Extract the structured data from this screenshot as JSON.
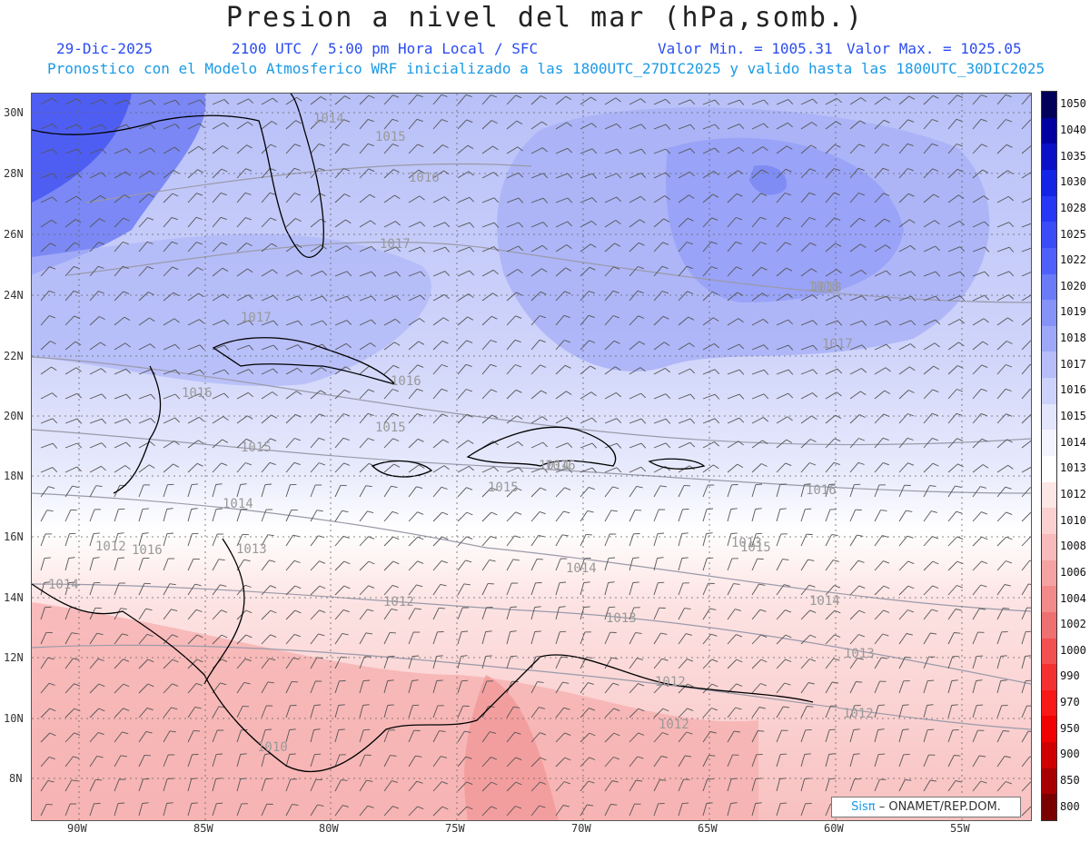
{
  "title": "Presion a nivel del mar (hPa,somb.)",
  "date": "29-Dic-2025",
  "time": "2100 UTC / 5:00 pm Hora Local / SFC",
  "min_label": "Valor Min. = 1005.31",
  "max_label": "Valor Max. = 1025.05",
  "model_line": "Pronostico con el Modelo Atmosferico WRF inicializado a las 1800UTC_27DIC2025 y valido hasta las  1800UTC_30DIC2025",
  "lat_labels": [
    "30N",
    "28N",
    "26N",
    "24N",
    "22N",
    "20N",
    "18N",
    "16N",
    "14N",
    "12N",
    "10N",
    "8N"
  ],
  "lon_labels": [
    "90W",
    "85W",
    "80W",
    "75W",
    "70W",
    "65W",
    "60W",
    "55W"
  ],
  "isobar_labels": [
    "1014",
    "1015",
    "1016",
    "1017",
    "1018",
    "1016",
    "1017",
    "1016",
    "1015",
    "1014",
    "1013",
    "1012",
    "1016",
    "1015",
    "1014",
    "1013",
    "1012",
    "1014",
    "1017",
    "1018",
    "1016",
    "1015",
    "1014",
    "1013",
    "1012",
    "1012",
    "1012",
    "1010",
    "1016",
    "1015",
    "1014",
    "1013"
  ],
  "colorbar": {
    "levels": [
      "1050",
      "1040",
      "1035",
      "1030",
      "1028",
      "1025",
      "1022",
      "1020",
      "1019",
      "1018",
      "1017",
      "1016",
      "1015",
      "1014",
      "1013",
      "1012",
      "1010",
      "1008",
      "1006",
      "1004",
      "1002",
      "1000",
      "990",
      "970",
      "950",
      "900",
      "850",
      "800"
    ],
    "colors": [
      "#00005a",
      "#0000a0",
      "#0a10c8",
      "#1424e6",
      "#2638f5",
      "#3a4cf8",
      "#5060fa",
      "#6a7bf8",
      "#8592f7",
      "#9ea8f8",
      "#b6bdf9",
      "#cdd2fa",
      "#e2e5fc",
      "#f2f3fd",
      "#ffffff",
      "#fde6e6",
      "#fbd0d0",
      "#f8baba",
      "#f5a2a2",
      "#f28a8a",
      "#ef7070",
      "#f25050",
      "#f53030",
      "#f81818",
      "#f00000",
      "#d00000",
      "#a80000",
      "#7a0000"
    ]
  },
  "credit": {
    "brand": "Sisπ",
    "org": "– ONAMET/REP.DOM."
  }
}
